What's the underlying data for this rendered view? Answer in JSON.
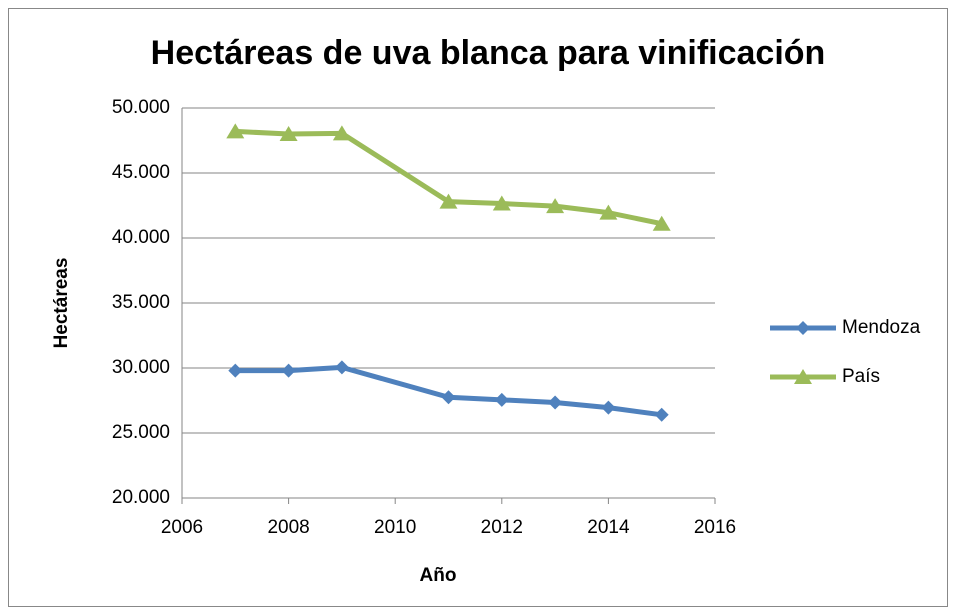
{
  "chart_data": {
    "type": "line",
    "title": "Hectáreas de uva blanca para vinificación",
    "xlabel": "Año",
    "ylabel": "Hectáreas",
    "x": [
      2007,
      2008,
      2009,
      2011,
      2012,
      2013,
      2014,
      2015
    ],
    "series": [
      {
        "name": "Mendoza",
        "color": "#4f81bd",
        "marker": "diamond",
        "values": [
          29800,
          29800,
          30050,
          27750,
          27550,
          27350,
          26950,
          26400
        ]
      },
      {
        "name": "País",
        "color": "#9bbb59",
        "marker": "triangle",
        "values": [
          48200,
          48000,
          48050,
          42800,
          42650,
          42450,
          41950,
          41100
        ]
      }
    ],
    "xlim": [
      2006,
      2016
    ],
    "xticks": [
      2006,
      2008,
      2010,
      2012,
      2014,
      2016
    ],
    "ylim": [
      20000,
      50000
    ],
    "yticks": [
      {
        "value": 20000,
        "label": "20.000"
      },
      {
        "value": 25000,
        "label": "25.000"
      },
      {
        "value": 30000,
        "label": "30.000"
      },
      {
        "value": 35000,
        "label": "35.000"
      },
      {
        "value": 40000,
        "label": "40.000"
      },
      {
        "value": 45000,
        "label": "45.000"
      },
      {
        "value": 50000,
        "label": "50.000"
      }
    ],
    "grid": true,
    "legend": "right"
  }
}
